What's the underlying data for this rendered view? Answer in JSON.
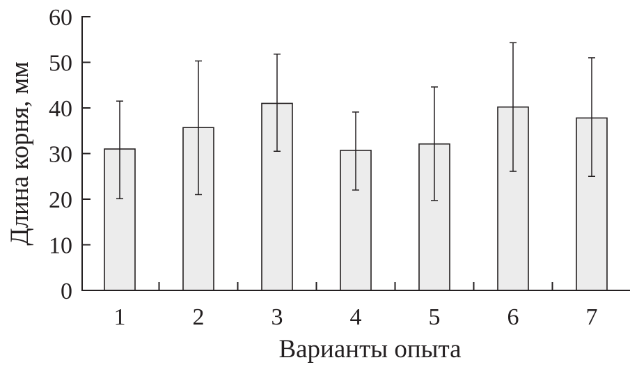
{
  "chart_data": {
    "type": "bar",
    "title": "",
    "xlabel": "Варианты опыта",
    "ylabel": "Длина корня, мм",
    "ylim": [
      0,
      60
    ],
    "yticks": [
      "0",
      "10",
      "20",
      "30",
      "40",
      "50",
      "60"
    ],
    "categories": [
      "1",
      "2",
      "3",
      "4",
      "5",
      "6",
      "7"
    ],
    "values": [
      31,
      35.7,
      41,
      30.7,
      32.1,
      40.2,
      37.8
    ],
    "error_upper": [
      41.5,
      50.3,
      51.8,
      39.1,
      44.6,
      54.3,
      51
    ],
    "error_lower": [
      20.1,
      21,
      30.5,
      22,
      19.7,
      26.1,
      25
    ],
    "bar_color": "#ececec",
    "edge_color": "#231f20",
    "grid": false,
    "legend": "none"
  }
}
